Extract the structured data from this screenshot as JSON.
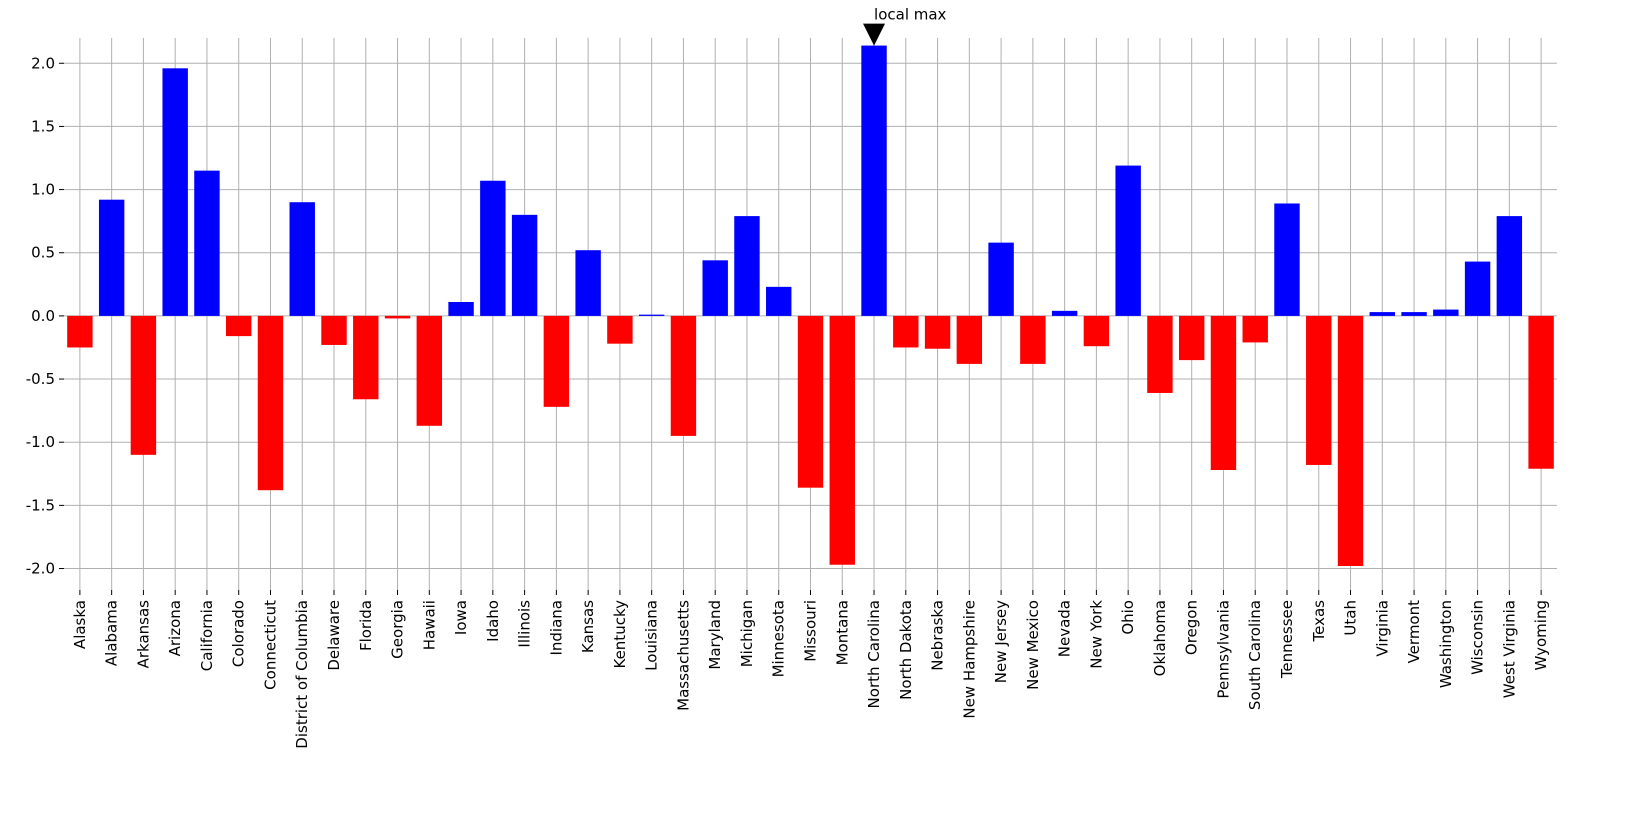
{
  "chart_data": {
    "type": "bar",
    "categories": [
      "Alaska",
      "Alabama",
      "Arkansas",
      "Arizona",
      "California",
      "Colorado",
      "Connecticut",
      "District of Columbia",
      "Delaware",
      "Florida",
      "Georgia",
      "Hawaii",
      "Iowa",
      "Idaho",
      "Illinois",
      "Indiana",
      "Kansas",
      "Kentucky",
      "Louisiana",
      "Massachusetts",
      "Maryland",
      "Michigan",
      "Minnesota",
      "Missouri",
      "Montana",
      "North Carolina",
      "North Dakota",
      "Nebraska",
      "New Hampshire",
      "New Jersey",
      "New Mexico",
      "Nevada",
      "New York",
      "Ohio",
      "Oklahoma",
      "Oregon",
      "Pennsylvania",
      "South Carolina",
      "Tennessee",
      "Texas",
      "Utah",
      "Virginia",
      "Vermont",
      "Washington",
      "Wisconsin",
      "West Virginia",
      "Wyoming"
    ],
    "values": [
      -0.25,
      0.92,
      -1.1,
      1.96,
      1.15,
      -0.16,
      -1.38,
      0.9,
      -0.23,
      -0.66,
      -0.02,
      -0.87,
      0.11,
      1.07,
      0.8,
      -0.72,
      0.52,
      -0.22,
      0.01,
      -0.95,
      0.44,
      0.79,
      0.23,
      -1.36,
      -1.97,
      2.14,
      -0.25,
      -0.26,
      -0.38,
      0.58,
      -0.38,
      0.04,
      -0.24,
      1.19,
      -0.61,
      -0.35,
      -1.22,
      -0.21,
      0.89,
      -1.18,
      -1.98,
      0.03,
      0.03,
      0.05,
      0.43,
      0.79,
      -1.21
    ],
    "color_positive": "#0000ff",
    "color_negative": "#ff0000",
    "annotation": "local max",
    "ylim": [
      -2.17,
      2.2
    ],
    "yticks": [
      {
        "value": -2.0,
        "label": "-2.0"
      },
      {
        "value": -1.5,
        "label": "-1.5"
      },
      {
        "value": -1.0,
        "label": "-1.0"
      },
      {
        "value": -0.5,
        "label": "-0.5"
      },
      {
        "value": 0,
        "label": "0.0"
      },
      {
        "value": 0.5,
        "label": "0.5"
      },
      {
        "value": 1.0,
        "label": "1.0"
      },
      {
        "value": 1.5,
        "label": "1.5"
      },
      {
        "value": 2.0,
        "label": "2.0"
      }
    ],
    "grid": true
  }
}
